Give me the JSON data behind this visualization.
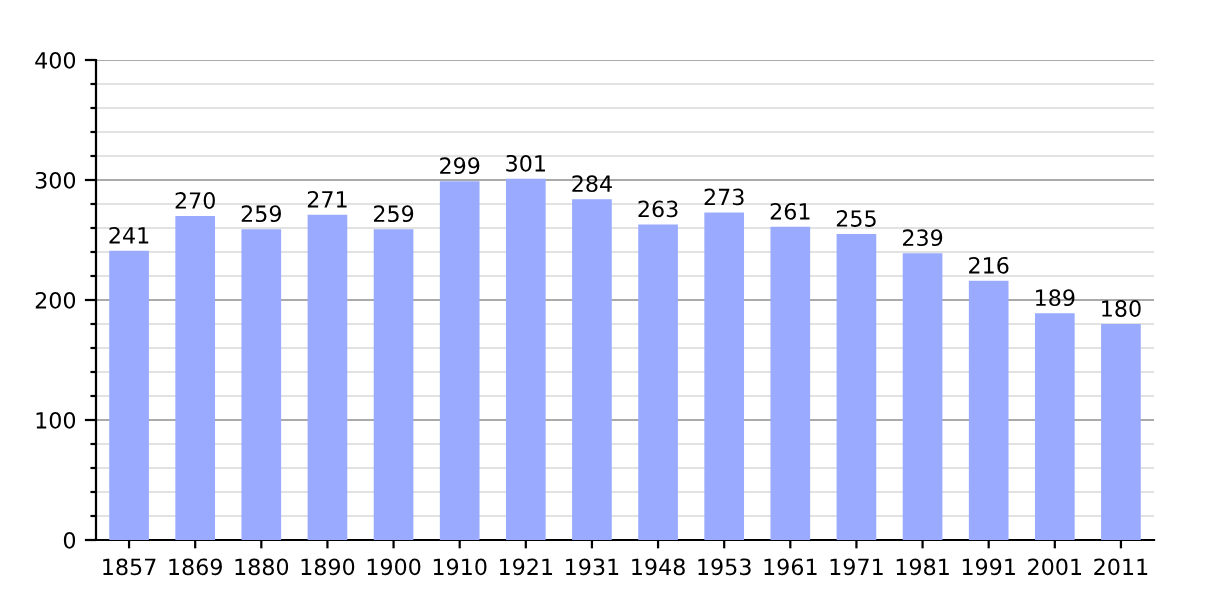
{
  "chart_data": {
    "type": "bar",
    "categories": [
      "1857",
      "1869",
      "1880",
      "1890",
      "1900",
      "1910",
      "1921",
      "1931",
      "1948",
      "1953",
      "1961",
      "1971",
      "1981",
      "1991",
      "2001",
      "2011"
    ],
    "values": [
      241,
      270,
      259,
      271,
      259,
      299,
      301,
      284,
      263,
      273,
      261,
      255,
      239,
      216,
      189,
      180
    ],
    "color": "#99aaff",
    "data_labels": true,
    "grid": "y",
    "ylim": [
      0,
      400
    ],
    "yticks": [
      0,
      {
        "value": 20,
        "label": null
      },
      {
        "value": 40,
        "label": null
      },
      {
        "value": 60,
        "label": null
      },
      {
        "value": 80,
        "label": null
      },
      100,
      {
        "value": 120,
        "label": null
      },
      {
        "value": 140,
        "label": null
      },
      {
        "value": 160,
        "label": null
      },
      {
        "value": 180,
        "label": null
      },
      200,
      {
        "value": 220,
        "label": null
      },
      {
        "value": 240,
        "label": null
      },
      {
        "value": 260,
        "label": null
      },
      {
        "value": 280,
        "label": null
      },
      300,
      {
        "value": 320,
        "label": null
      },
      {
        "value": 340,
        "label": null
      },
      {
        "value": 360,
        "label": null
      },
      {
        "value": 380,
        "label": null
      },
      400
    ]
  }
}
